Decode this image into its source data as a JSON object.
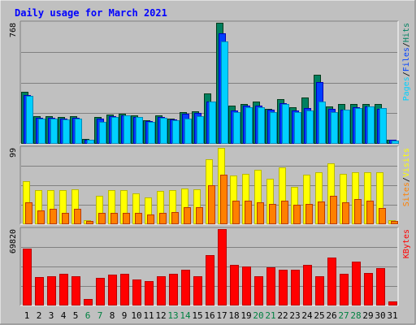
{
  "colors": {
    "background": "#c0c0c0",
    "plot_background": "#c0c0c0",
    "title": "#0000ff",
    "pages": "#00d0ff",
    "files": "#0040ff",
    "hits": "#008060",
    "visits": "#ffff00",
    "sites": "#ff8000",
    "kbytes": "#ff0000",
    "weekend_label": "#008040",
    "weekday_label": "#000000",
    "separator": "#000000"
  },
  "chart_data": [
    {
      "type": "bar",
      "title": "Daily usage for March 2021",
      "scale_label": "768",
      "ylim": [
        0,
        768
      ],
      "axis_labels": [
        "Pages",
        "Files",
        "Hits"
      ],
      "categories": [
        "1",
        "2",
        "3",
        "4",
        "5",
        "6",
        "7",
        "8",
        "9",
        "10",
        "11",
        "12",
        "13",
        "14",
        "15",
        "16",
        "17",
        "18",
        "19",
        "20",
        "21",
        "22",
        "23",
        "24",
        "25",
        "26",
        "27",
        "28",
        "29",
        "30",
        "31"
      ],
      "weekend_days": [
        "6",
        "7",
        "13",
        "14",
        "20",
        "21",
        "27",
        "28"
      ],
      "series": [
        {
          "name": "Hits",
          "values": [
            330,
            175,
            175,
            170,
            175,
            30,
            170,
            185,
            190,
            180,
            150,
            180,
            160,
            200,
            205,
            320,
            768,
            240,
            255,
            270,
            220,
            285,
            230,
            295,
            440,
            235,
            250,
            255,
            255,
            250,
            25
          ]
        },
        {
          "name": "Files",
          "values": [
            310,
            165,
            165,
            160,
            165,
            28,
            160,
            175,
            180,
            172,
            145,
            168,
            155,
            190,
            195,
            270,
            700,
            210,
            240,
            240,
            215,
            260,
            210,
            225,
            390,
            220,
            215,
            230,
            235,
            220,
            25
          ]
        },
        {
          "name": "Pages",
          "values": [
            305,
            160,
            158,
            155,
            160,
            25,
            140,
            172,
            178,
            170,
            140,
            165,
            152,
            160,
            175,
            270,
            650,
            200,
            230,
            230,
            200,
            250,
            200,
            210,
            270,
            200,
            215,
            225,
            235,
            225,
            23
          ]
        }
      ]
    },
    {
      "type": "bar",
      "scale_label": "99",
      "ylim": [
        0,
        99
      ],
      "axis_labels": [
        "Sites",
        "Visits"
      ],
      "categories": [
        "1",
        "2",
        "3",
        "4",
        "5",
        "6",
        "7",
        "8",
        "9",
        "10",
        "11",
        "12",
        "13",
        "14",
        "15",
        "16",
        "17",
        "18",
        "19",
        "20",
        "21",
        "22",
        "23",
        "24",
        "25",
        "26",
        "27",
        "28",
        "29",
        "30",
        "31"
      ],
      "series": [
        {
          "name": "Visits",
          "values": [
            56,
            44,
            44,
            44,
            45,
            5,
            37,
            44,
            44,
            40,
            35,
            43,
            44,
            46,
            45,
            84,
            99,
            63,
            65,
            71,
            59,
            74,
            48,
            64,
            67,
            79,
            65,
            67,
            67,
            67,
            5
          ]
        },
        {
          "name": "Sites",
          "values": [
            28,
            18,
            20,
            15,
            20,
            4,
            15,
            15,
            15,
            15,
            13,
            15,
            16,
            22,
            22,
            51,
            64,
            31,
            31,
            28,
            26,
            31,
            25,
            26,
            29,
            37,
            28,
            33,
            31,
            21,
            4
          ]
        }
      ]
    },
    {
      "type": "bar",
      "scale_label": "69820",
      "ylim": [
        0,
        69820
      ],
      "axis_labels": [
        "KBytes"
      ],
      "categories": [
        "1",
        "2",
        "3",
        "4",
        "5",
        "6",
        "7",
        "8",
        "9",
        "10",
        "11",
        "12",
        "13",
        "14",
        "15",
        "16",
        "17",
        "18",
        "19",
        "20",
        "21",
        "22",
        "23",
        "24",
        "25",
        "26",
        "27",
        "28",
        "29",
        "30",
        "31"
      ],
      "series": [
        {
          "name": "KBytes",
          "values": [
            52000,
            26000,
            27000,
            29000,
            27000,
            6000,
            25000,
            28000,
            29000,
            24000,
            22000,
            27000,
            29000,
            33000,
            27000,
            46000,
            69820,
            37000,
            36000,
            27000,
            35000,
            33000,
            33000,
            37000,
            27000,
            44000,
            29000,
            40000,
            30000,
            34000,
            4000
          ]
        }
      ]
    }
  ]
}
